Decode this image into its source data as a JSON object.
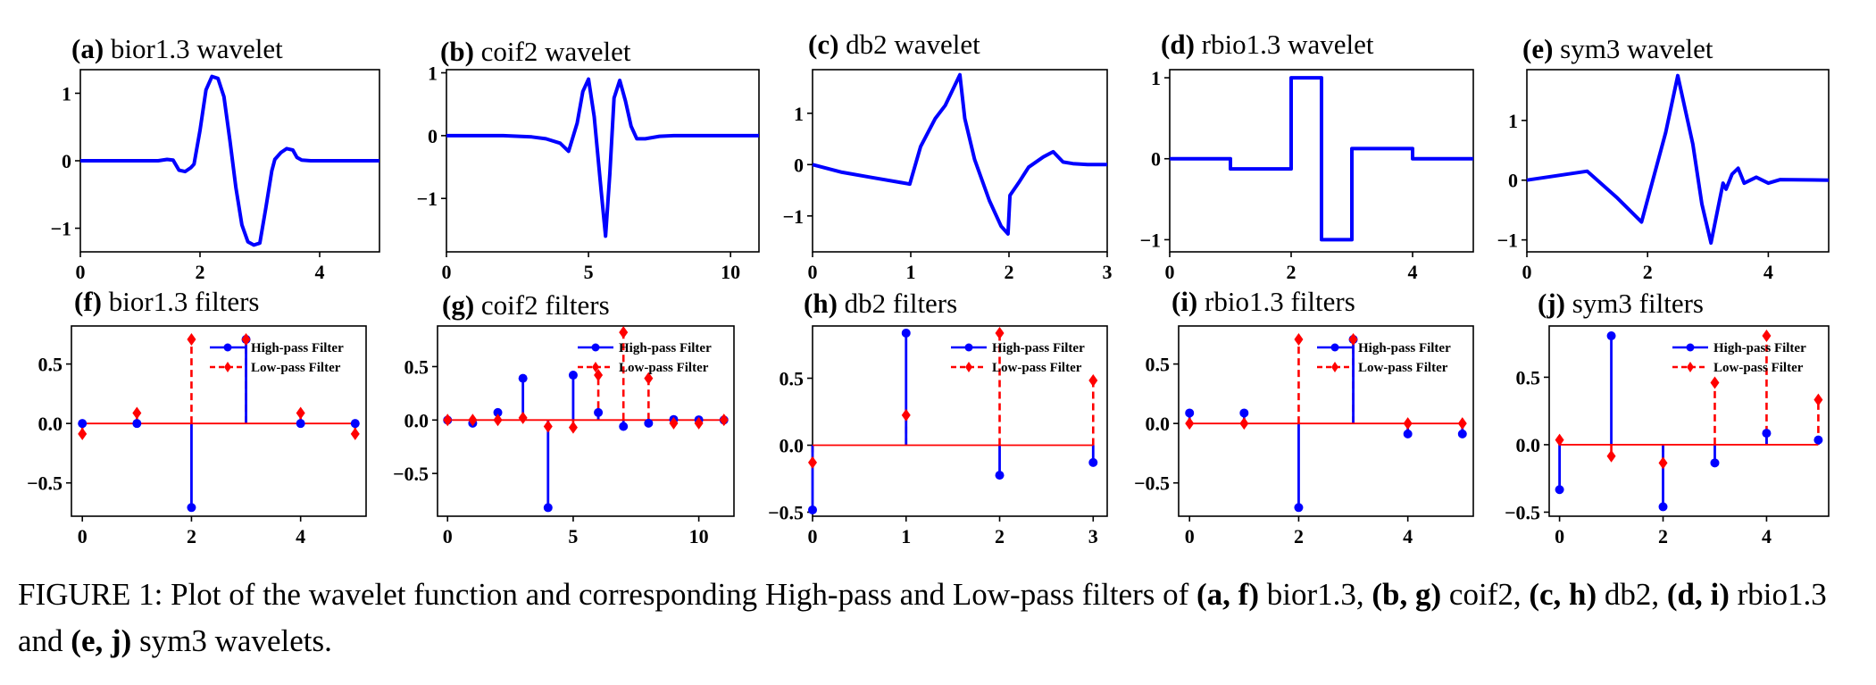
{
  "chart_data": [
    {
      "panel": "a",
      "type": "line",
      "label": "(a)",
      "title": "bior1.3 wavelet",
      "color": "#0000ff",
      "xlim": [
        0,
        5
      ],
      "ylim": [
        -1.35,
        1.35
      ],
      "xticks": [
        0,
        2,
        4
      ],
      "yticks": [
        -1,
        0,
        1
      ],
      "xtick_labels": [
        "0",
        "2",
        "4"
      ],
      "ytick_labels": [
        "−1",
        "0",
        "1"
      ],
      "x": [
        0,
        1.0,
        1.3,
        1.45,
        1.55,
        1.65,
        1.75,
        1.85,
        1.9,
        2.0,
        2.1,
        2.2,
        2.3,
        2.4,
        2.5,
        2.6,
        2.7,
        2.8,
        2.9,
        3.0,
        3.1,
        3.2,
        3.25,
        3.35,
        3.45,
        3.55,
        3.62,
        3.7,
        3.85,
        4.0,
        5.0
      ],
      "y": [
        0,
        0,
        0,
        0.02,
        0.01,
        -0.14,
        -0.16,
        -0.1,
        -0.05,
        0.45,
        1.05,
        1.25,
        1.22,
        0.95,
        0.3,
        -0.4,
        -0.95,
        -1.2,
        -1.25,
        -1.22,
        -0.7,
        -0.15,
        0.02,
        0.12,
        0.18,
        0.16,
        0.05,
        0.01,
        0,
        0,
        0
      ]
    },
    {
      "panel": "b",
      "type": "line",
      "label": "(b)",
      "title": "coif2 wavelet",
      "color": "#0000ff",
      "xlim": [
        0,
        11
      ],
      "ylim": [
        -1.85,
        1.05
      ],
      "xticks": [
        0,
        5,
        10
      ],
      "yticks": [
        -1,
        0,
        1
      ],
      "xtick_labels": [
        "0",
        "5",
        "10"
      ],
      "ytick_labels": [
        "−1",
        "0",
        "1"
      ],
      "x": [
        0,
        1,
        2,
        3,
        3.5,
        4.0,
        4.3,
        4.6,
        4.8,
        5.0,
        5.2,
        5.45,
        5.6,
        5.75,
        5.9,
        6.1,
        6.3,
        6.5,
        6.7,
        7.0,
        7.5,
        8,
        11
      ],
      "y": [
        0,
        0,
        0,
        -0.02,
        -0.05,
        -0.12,
        -0.25,
        0.2,
        0.7,
        0.9,
        0.3,
        -0.9,
        -1.6,
        -0.6,
        0.6,
        0.88,
        0.55,
        0.15,
        -0.05,
        -0.05,
        -0.01,
        0,
        0
      ]
    },
    {
      "panel": "c",
      "type": "line",
      "label": "(c)",
      "title": "db2 wavelet",
      "color": "#0000ff",
      "xlim": [
        0,
        3
      ],
      "ylim": [
        -1.7,
        1.85
      ],
      "xticks": [
        0,
        1,
        2,
        3
      ],
      "yticks": [
        -1,
        0,
        1
      ],
      "xtick_labels": [
        "0",
        "1",
        "2",
        "3"
      ],
      "ytick_labels": [
        "−1",
        "0",
        "1"
      ],
      "x": [
        0,
        0.3,
        0.6,
        0.9,
        0.99,
        1.1,
        1.25,
        1.35,
        1.5,
        1.55,
        1.65,
        1.8,
        1.92,
        1.99,
        2.01,
        2.1,
        2.2,
        2.35,
        2.45,
        2.55,
        2.65,
        2.8,
        3.0
      ],
      "y": [
        0,
        -0.15,
        -0.25,
        -0.35,
        -0.38,
        0.35,
        0.9,
        1.15,
        1.75,
        0.9,
        0.1,
        -0.7,
        -1.2,
        -1.35,
        -0.6,
        -0.35,
        -0.05,
        0.15,
        0.25,
        0.05,
        0.02,
        0,
        0
      ]
    },
    {
      "panel": "d",
      "type": "line",
      "label": "(d)",
      "title": "rbio1.3 wavelet",
      "color": "#0000ff",
      "xlim": [
        0,
        5
      ],
      "ylim": [
        -1.15,
        1.1
      ],
      "xticks": [
        0,
        2,
        4
      ],
      "yticks": [
        -1,
        0,
        1
      ],
      "xtick_labels": [
        "0",
        "2",
        "4"
      ],
      "ytick_labels": [
        "−1",
        "0",
        "1"
      ],
      "x": [
        0,
        1,
        1,
        2,
        2,
        2.5,
        2.5,
        3,
        3,
        4,
        4,
        5
      ],
      "y": [
        0,
        0,
        -0.125,
        -0.125,
        1,
        1,
        -1,
        -1,
        0.125,
        0.125,
        0,
        0
      ]
    },
    {
      "panel": "e",
      "type": "line",
      "label": "(e)",
      "title": "sym3 wavelet",
      "color": "#0000ff",
      "xlim": [
        0,
        5
      ],
      "ylim": [
        -1.2,
        1.85
      ],
      "xticks": [
        0,
        2,
        4
      ],
      "yticks": [
        -1,
        0,
        1
      ],
      "xtick_labels": [
        "0",
        "2",
        "4"
      ],
      "ytick_labels": [
        "−1",
        "0",
        "1"
      ],
      "x": [
        0,
        1.0,
        1.5,
        1.9,
        2.3,
        2.5,
        2.75,
        2.9,
        3.05,
        3.2,
        3.25,
        3.3,
        3.4,
        3.5,
        3.6,
        3.8,
        4.0,
        4.2,
        5.0
      ],
      "y": [
        0,
        0.15,
        -0.3,
        -0.7,
        0.8,
        1.75,
        0.6,
        -0.4,
        -1.05,
        -0.3,
        -0.05,
        -0.15,
        0.1,
        0.2,
        -0.05,
        0.05,
        -0.05,
        0.01,
        0
      ]
    },
    {
      "panel": "f",
      "type": "stem",
      "label": "(f)",
      "title": "bior1.3 filters",
      "xlim": [
        -0.2,
        5.2
      ],
      "ylim": [
        -0.78,
        0.82
      ],
      "xticks": [
        0,
        2,
        4
      ],
      "yticks": [
        -0.5,
        0,
        0.5
      ],
      "xtick_labels": [
        "0",
        "2",
        "4"
      ],
      "ytick_labels": [
        "−0.5",
        "0.0",
        "0.5"
      ],
      "categories": [
        0,
        1,
        2,
        3,
        4,
        5
      ],
      "series": [
        {
          "name": "High-pass Filter",
          "color": "#0000ff",
          "marker": "circle",
          "line": "solid",
          "values": [
            0,
            0,
            -0.707,
            0.707,
            0,
            0
          ]
        },
        {
          "name": "Low-pass Filter",
          "color": "#ff0000",
          "marker": "diamond",
          "line": "dashed",
          "values": [
            -0.088,
            0.088,
            0.707,
            0.707,
            0.088,
            -0.088
          ]
        }
      ],
      "legend": "upper-right"
    },
    {
      "panel": "g",
      "type": "stem",
      "label": "(g)",
      "title": "coif2 filters",
      "xlim": [
        -0.4,
        11.4
      ],
      "ylim": [
        -0.9,
        0.88
      ],
      "xticks": [
        0,
        5,
        10
      ],
      "yticks": [
        -0.5,
        0,
        0.5
      ],
      "xtick_labels": [
        "0",
        "5",
        "10"
      ],
      "ytick_labels": [
        "−0.5",
        "0.0",
        "0.5"
      ],
      "categories": [
        0,
        1,
        2,
        3,
        4,
        5,
        6,
        7,
        8,
        9,
        10,
        11
      ],
      "series": [
        {
          "name": "High-pass Filter",
          "color": "#0000ff",
          "marker": "circle",
          "line": "solid",
          "values": [
            -0.001,
            -0.03,
            0.07,
            0.39,
            -0.82,
            0.42,
            0.07,
            -0.06,
            -0.03,
            0.005,
            0.002,
            0.0
          ]
        },
        {
          "name": "Low-pass Filter",
          "color": "#ff0000",
          "marker": "diamond",
          "line": "dashed",
          "values": [
            0.0,
            0.0,
            0.0,
            0.02,
            -0.06,
            -0.07,
            0.42,
            0.82,
            0.39,
            -0.03,
            -0.03,
            0.001
          ]
        }
      ],
      "legend": "upper-right"
    },
    {
      "panel": "h",
      "type": "stem",
      "label": "(h)",
      "title": "db2 filters",
      "xlim": [
        0,
        3.15
      ],
      "ylim": [
        -0.53,
        0.89
      ],
      "xticks": [
        0,
        1,
        2,
        3
      ],
      "yticks": [
        -0.5,
        0,
        0.5
      ],
      "xtick_labels": [
        "0",
        "1",
        "2",
        "3"
      ],
      "ytick_labels": [
        "−0.5",
        "0.0",
        "0.5"
      ],
      "categories": [
        0,
        1,
        2,
        3
      ],
      "series": [
        {
          "name": "High-pass Filter",
          "color": "#0000ff",
          "marker": "circle",
          "line": "solid",
          "values": [
            -0.483,
            0.837,
            -0.224,
            -0.129
          ]
        },
        {
          "name": "Low-pass Filter",
          "color": "#ff0000",
          "marker": "diamond",
          "line": "dashed",
          "values": [
            -0.129,
            0.224,
            0.837,
            0.483
          ]
        }
      ],
      "legend": "upper-right"
    },
    {
      "panel": "i",
      "type": "stem",
      "label": "(i)",
      "title": "rbio1.3 filters",
      "xlim": [
        -0.2,
        5.2
      ],
      "ylim": [
        -0.78,
        0.82
      ],
      "xticks": [
        0,
        2,
        4
      ],
      "yticks": [
        -0.5,
        0,
        0.5
      ],
      "xtick_labels": [
        "0",
        "2",
        "4"
      ],
      "ytick_labels": [
        "−0.5",
        "0.0",
        "0.5"
      ],
      "categories": [
        0,
        1,
        2,
        3,
        4,
        5
      ],
      "series": [
        {
          "name": "High-pass Filter",
          "color": "#0000ff",
          "marker": "circle",
          "line": "solid",
          "values": [
            0.088,
            0.088,
            -0.707,
            0.707,
            -0.088,
            -0.088
          ]
        },
        {
          "name": "Low-pass Filter",
          "color": "#ff0000",
          "marker": "diamond",
          "line": "dashed",
          "values": [
            0,
            0,
            0.707,
            0.707,
            0,
            0
          ]
        }
      ],
      "legend": "upper-right"
    },
    {
      "panel": "j",
      "type": "stem",
      "label": "(j)",
      "title": "sym3 filters",
      "xlim": [
        -0.2,
        5.2
      ],
      "ylim": [
        -0.53,
        0.88
      ],
      "xticks": [
        0,
        2,
        4
      ],
      "yticks": [
        -0.5,
        0,
        0.5
      ],
      "xtick_labels": [
        "0",
        "2",
        "4"
      ],
      "ytick_labels": [
        "−0.5",
        "0.0",
        "0.5"
      ],
      "categories": [
        0,
        1,
        2,
        3,
        4,
        5
      ],
      "series": [
        {
          "name": "High-pass Filter",
          "color": "#0000ff",
          "marker": "circle",
          "line": "solid",
          "values": [
            -0.333,
            0.807,
            -0.46,
            -0.135,
            0.085,
            0.035
          ]
        },
        {
          "name": "Low-pass Filter",
          "color": "#ff0000",
          "marker": "diamond",
          "line": "dashed",
          "values": [
            0.035,
            -0.085,
            -0.135,
            0.46,
            0.807,
            0.333
          ]
        }
      ],
      "legend": "upper-right"
    }
  ],
  "caption": {
    "t1": "FIGURE 1: Plot of the wavelet function and corresponding High-pass and Low-pass filters of ",
    "b1": "(a, f)",
    "t2": " bior1.3, ",
    "b2": "(b, g)",
    "t3": " coif2, ",
    "b3": "(c, h)",
    "t4": " db2, ",
    "b4": "(d, i)",
    "t5": " rbio1.3 and ",
    "b5": "(e, j)",
    "t6": " sym3 wavelets."
  }
}
